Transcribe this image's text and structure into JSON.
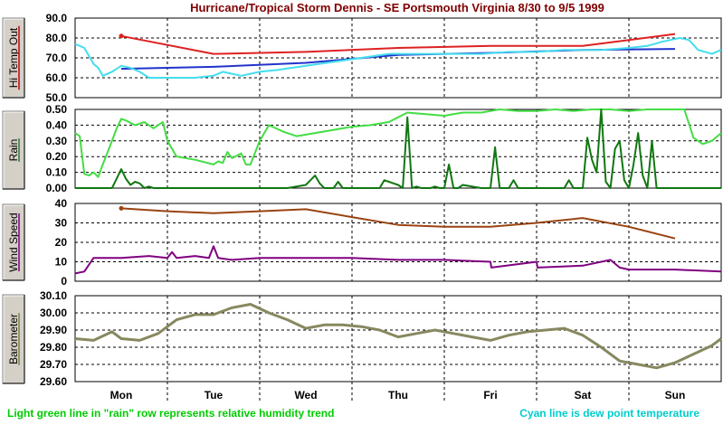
{
  "title": "Hurricane/Tropical Storm Dennis - SE Portsmouth Virginia 8/30 to 9/5 1999",
  "notes": {
    "left": "Light green line in \"rain\" row represents relative humidity trend",
    "right": "Cyan line is dew point temperature"
  },
  "colors": {
    "title": "#800000",
    "note_left": "#00cc00",
    "note_right": "#00cccc",
    "panel_button": "#d4d0c8",
    "grid": "#000000"
  },
  "chart_data": {
    "type": "line",
    "x_unit": "days from Monday 00:00",
    "xlim": [
      -0.5,
      6.5
    ],
    "categories": [
      "Mon",
      "Tue",
      "Wed",
      "Thu",
      "Fri",
      "Sat",
      "Sun"
    ],
    "grid": true,
    "panels": [
      {
        "id": "temp",
        "label": "Hi Temp Out",
        "label_accent": "#cc0000",
        "ylim": [
          50,
          90
        ],
        "yticks": [
          "90.0",
          "80.0",
          "70.0",
          "60.0",
          "50.0"
        ],
        "ytick_values": [
          90,
          80,
          70,
          60,
          50
        ],
        "series": [
          {
            "role": "hi-temp",
            "color": "#dd2222",
            "width": 2,
            "x": [
              0.0,
              1.0,
              2.0,
              3.0,
              4.0,
              5.0,
              5.5,
              6.0
            ],
            "y": [
              81,
              72,
              73,
              75,
              76,
              76,
              79,
              82
            ],
            "marker_first": true
          },
          {
            "role": "mid-temp",
            "color": "#2233cc",
            "width": 2,
            "x": [
              0.0,
              1.0,
              2.0,
              3.0,
              4.0,
              5.0,
              6.0
            ],
            "y": [
              64.5,
              65.5,
              67.5,
              71.5,
              72.5,
              74,
              74.5
            ]
          },
          {
            "role": "dew-point",
            "color": "#44ddee",
            "width": 2,
            "x": [
              -0.5,
              -0.4,
              -0.3,
              -0.25,
              -0.2,
              -0.1,
              0.0,
              0.1,
              0.2,
              0.3,
              0.5,
              0.8,
              1.0,
              1.1,
              1.2,
              1.3,
              1.5,
              1.7,
              2.0,
              2.3,
              2.6,
              2.9,
              3.2,
              3.5,
              3.9,
              4.2,
              4.5,
              4.8,
              5.0,
              5.2,
              5.5,
              5.7,
              5.85,
              5.95,
              6.05,
              6.15,
              6.25,
              6.4,
              6.5
            ],
            "y": [
              77,
              75,
              67,
              65,
              61,
              63,
              66,
              65,
              63,
              60,
              60,
              60,
              61,
              63,
              62,
              61,
              63,
              64,
              66,
              68,
              70,
              72,
              72,
              72,
              72,
              73,
              73,
              74,
              74,
              74,
              75,
              76,
              78,
              79,
              80,
              79,
              74,
              72,
              74
            ]
          }
        ]
      },
      {
        "id": "rain",
        "label": "Rain",
        "label_accent": "#2d7a2d",
        "ylim": [
          0,
          0.5
        ],
        "yticks": [
          "0.50",
          "0.40",
          "0.30",
          "0.20",
          "0.10",
          "0.00"
        ],
        "ytick_values": [
          0.5,
          0.4,
          0.3,
          0.2,
          0.1,
          0.0
        ],
        "series": [
          {
            "role": "humidity-trend",
            "color": "#44dd44",
            "width": 2,
            "x": [
              -0.5,
              -0.45,
              -0.4,
              -0.35,
              -0.3,
              -0.25,
              -0.2,
              -0.1,
              -0.05,
              0.0,
              0.05,
              0.15,
              0.25,
              0.35,
              0.45,
              0.5,
              0.6,
              0.8,
              1.0,
              1.05,
              1.1,
              1.15,
              1.2,
              1.3,
              1.35,
              1.4,
              1.5,
              1.6,
              1.75,
              1.9,
              2.1,
              2.3,
              2.5,
              2.7,
              2.9,
              3.0,
              3.1,
              3.3,
              3.5,
              3.7,
              3.9,
              4.1,
              4.3,
              4.5,
              4.7,
              4.9,
              5.1,
              5.3,
              5.5,
              5.7,
              5.9,
              6.0,
              6.1,
              6.2,
              6.3,
              6.4,
              6.5
            ],
            "y": [
              0.35,
              0.33,
              0.09,
              0.08,
              0.1,
              0.07,
              0.15,
              0.3,
              0.38,
              0.44,
              0.43,
              0.4,
              0.42,
              0.38,
              0.42,
              0.3,
              0.2,
              0.18,
              0.15,
              0.17,
              0.16,
              0.23,
              0.19,
              0.22,
              0.15,
              0.15,
              0.3,
              0.4,
              0.36,
              0.33,
              0.35,
              0.37,
              0.39,
              0.4,
              0.42,
              0.45,
              0.48,
              0.47,
              0.46,
              0.48,
              0.48,
              0.5,
              0.49,
              0.49,
              0.5,
              0.49,
              0.5,
              0.5,
              0.49,
              0.5,
              0.5,
              0.5,
              0.5,
              0.32,
              0.28,
              0.3,
              0.35
            ]
          },
          {
            "role": "rain-rate",
            "color": "#117711",
            "width": 2,
            "x": [
              -0.5,
              -0.1,
              -0.05,
              0.0,
              0.05,
              0.1,
              0.15,
              0.2,
              0.25,
              0.3,
              0.35,
              1.8,
              2.0,
              2.05,
              2.1,
              2.15,
              2.2,
              2.3,
              2.35,
              2.4,
              2.45,
              2.8,
              2.85,
              2.9,
              2.95,
              3.0,
              3.05,
              3.1,
              3.15,
              3.2,
              3.25,
              3.3,
              3.35,
              3.4,
              3.45,
              3.5,
              3.55,
              3.6,
              3.65,
              3.7,
              3.9,
              4.0,
              4.05,
              4.1,
              4.15,
              4.2,
              4.25,
              4.3,
              4.35,
              4.4,
              4.45,
              4.5,
              4.55,
              4.6,
              4.8,
              4.85,
              4.9,
              5.0,
              5.05,
              5.1,
              5.15,
              5.2,
              5.25,
              5.3,
              5.35,
              5.4,
              5.45,
              5.5,
              5.55,
              5.6,
              5.65,
              5.7,
              5.75,
              5.8,
              5.85,
              6.0,
              6.5
            ],
            "y": [
              0.0,
              0.0,
              0.06,
              0.12,
              0.06,
              0.02,
              0.04,
              0.03,
              0.0,
              0.01,
              0.0,
              0.0,
              0.02,
              0.05,
              0.08,
              0.03,
              0.0,
              0.0,
              0.04,
              0.0,
              0.0,
              0.0,
              0.05,
              0.04,
              0.03,
              0.02,
              0.0,
              0.45,
              0.0,
              0.01,
              0.0,
              0.0,
              0.0,
              0.01,
              0.0,
              0.0,
              0.15,
              0.0,
              0.0,
              0.02,
              0.0,
              0.0,
              0.26,
              0.0,
              0.0,
              0.0,
              0.05,
              0.0,
              0.0,
              0.0,
              0.0,
              0.0,
              0.0,
              0.0,
              0.0,
              0.05,
              0.0,
              0.0,
              0.32,
              0.18,
              0.1,
              0.5,
              0.04,
              0.0,
              0.25,
              0.3,
              0.05,
              0.0,
              0.15,
              0.35,
              0.08,
              0.0,
              0.3,
              0.0,
              0.0,
              0.0,
              0.0
            ]
          }
        ]
      },
      {
        "id": "wind",
        "label": "Wind Speed",
        "label_accent": "#800080",
        "ylim": [
          0,
          40
        ],
        "yticks": [
          "40",
          "30",
          "20",
          "10",
          "0"
        ],
        "ytick_values": [
          40,
          30,
          20,
          10,
          0
        ],
        "series": [
          {
            "role": "wind-trend",
            "color": "#994411",
            "width": 2,
            "x": [
              0.0,
              0.5,
              1.0,
              1.5,
              2.0,
              2.5,
              3.0,
              3.5,
              4.0,
              4.5,
              5.0,
              5.5,
              6.0
            ],
            "y": [
              37.5,
              36,
              35,
              36,
              37,
              33,
              29,
              28,
              28,
              30,
              32.5,
              28,
              22
            ],
            "marker_first": true
          },
          {
            "role": "wind-speed",
            "color": "#800080",
            "width": 2,
            "x": [
              -0.5,
              -0.4,
              -0.3,
              -0.2,
              0.0,
              0.3,
              0.5,
              0.55,
              0.6,
              0.8,
              0.95,
              1.0,
              1.05,
              1.2,
              1.5,
              2.0,
              2.5,
              3.0,
              3.5,
              4.0,
              4.01,
              4.5,
              4.51,
              5.0,
              5.3,
              5.4,
              5.5,
              6.0,
              6.5
            ],
            "y": [
              4,
              5,
              12,
              12,
              12,
              13,
              12,
              15,
              12,
              13,
              12,
              18,
              12,
              11,
              12,
              12,
              12,
              11,
              11,
              10,
              7,
              10,
              7,
              8,
              11,
              7,
              6,
              6,
              5
            ]
          }
        ]
      },
      {
        "id": "baro",
        "label": "Barometer",
        "label_accent": "#808040",
        "ylim": [
          29.6,
          30.1
        ],
        "yticks": [
          "30.10",
          "30.00",
          "29.90",
          "29.80",
          "29.70",
          "29.60"
        ],
        "ytick_values": [
          30.1,
          30.0,
          29.9,
          29.8,
          29.7,
          29.6
        ],
        "series": [
          {
            "role": "barometer",
            "color": "#888860",
            "width": 3,
            "x": [
              -0.5,
              -0.3,
              -0.1,
              0.0,
              0.2,
              0.4,
              0.6,
              0.8,
              1.0,
              1.2,
              1.4,
              1.6,
              1.8,
              2.0,
              2.2,
              2.4,
              2.6,
              2.8,
              3.0,
              3.2,
              3.4,
              3.6,
              3.8,
              4.0,
              4.2,
              4.4,
              4.6,
              4.8,
              5.0,
              5.2,
              5.4,
              5.6,
              5.8,
              6.0,
              6.2,
              6.4,
              6.5
            ],
            "y": [
              29.85,
              29.84,
              29.89,
              29.85,
              29.84,
              29.88,
              29.96,
              29.99,
              29.99,
              30.03,
              30.05,
              30.0,
              29.96,
              29.91,
              29.93,
              29.93,
              29.92,
              29.9,
              29.86,
              29.88,
              29.9,
              29.88,
              29.86,
              29.84,
              29.87,
              29.89,
              29.9,
              29.91,
              29.87,
              29.8,
              29.72,
              29.7,
              29.68,
              29.71,
              29.76,
              29.81,
              29.85
            ]
          }
        ]
      }
    ]
  }
}
